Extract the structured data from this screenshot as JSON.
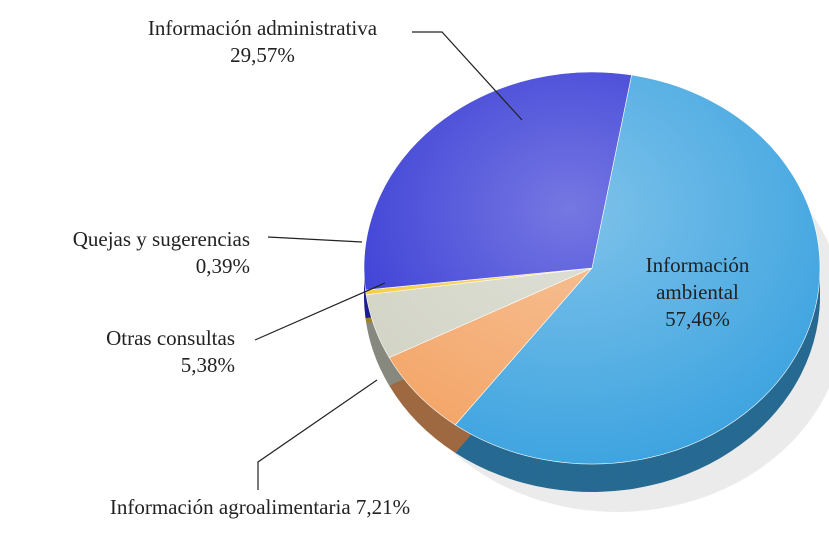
{
  "chart_data": {
    "type": "pie",
    "categories": [
      "Información ambiental",
      "Información agroalimentaria",
      "Otras consultas",
      "Quejas y sugerencias",
      "Información administrativa"
    ],
    "values": [
      57.46,
      7.21,
      5.38,
      0.39,
      29.57
    ],
    "value_labels": [
      "57,46%",
      "7,21%",
      "5,38%",
      "0,39%",
      "29,57%"
    ],
    "colors": [
      "#3aa2df",
      "#f3a262",
      "#cfd1c2",
      "#f4c934",
      "#2b2fd2"
    ]
  }
}
